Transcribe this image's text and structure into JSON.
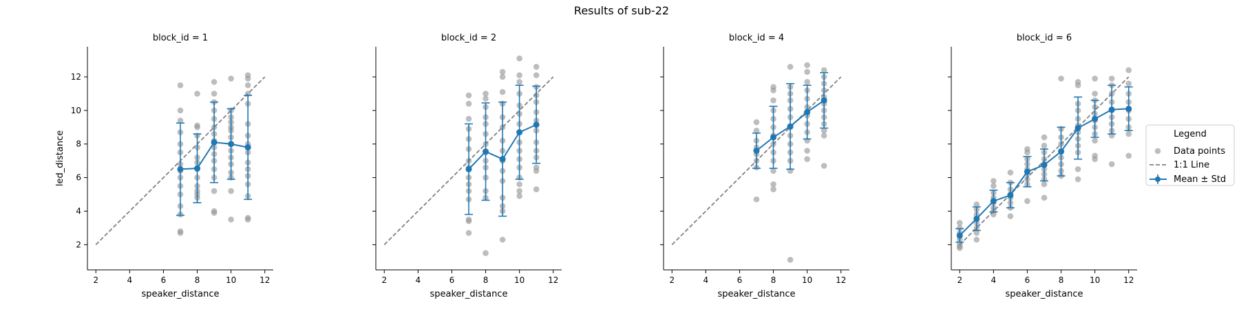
{
  "figure": {
    "title": "Results of sub-22"
  },
  "legend": {
    "title": "Legend",
    "placement": "right",
    "entries": [
      {
        "label": "Data points",
        "kind": "scatter",
        "color": "#a9a9a9"
      },
      {
        "label": "1:1 Line",
        "kind": "dashed-line",
        "color": "#808080"
      },
      {
        "label": "Mean ± Std",
        "kind": "errorbar-line",
        "color": "#1f77b4"
      }
    ]
  },
  "chart_data": [
    {
      "type": "scatter",
      "title": "block_id = 1",
      "xlabel": "speaker_distance",
      "ylabel": "led_distance",
      "xlim": [
        1.5,
        12.5
      ],
      "ylim": [
        0.5,
        13.8
      ],
      "xticks": [
        2,
        4,
        6,
        8,
        10,
        12
      ],
      "yticks": [
        2,
        4,
        6,
        8,
        10,
        12
      ],
      "grid": false,
      "identity_line": [
        [
          2,
          2
        ],
        [
          12,
          12
        ]
      ],
      "points": [
        [
          7,
          11.5
        ],
        [
          7,
          10.0
        ],
        [
          7,
          9.4
        ],
        [
          7,
          8.7
        ],
        [
          7,
          8.0
        ],
        [
          7,
          7.5
        ],
        [
          7,
          6.8
        ],
        [
          7,
          6.4
        ],
        [
          7,
          6.0
        ],
        [
          7,
          5.5
        ],
        [
          7,
          5.0
        ],
        [
          7,
          4.3
        ],
        [
          7,
          3.8
        ],
        [
          7,
          2.8
        ],
        [
          7,
          2.7
        ],
        [
          8,
          11.0
        ],
        [
          8,
          9.1
        ],
        [
          8,
          9.0
        ],
        [
          8,
          8.5
        ],
        [
          8,
          7.8
        ],
        [
          8,
          7.2
        ],
        [
          8,
          6.9
        ],
        [
          8,
          6.5
        ],
        [
          8,
          6.0
        ],
        [
          8,
          5.5
        ],
        [
          8,
          5.2
        ],
        [
          8,
          5.0
        ],
        [
          8,
          4.8
        ],
        [
          9,
          11.7
        ],
        [
          9,
          11.0
        ],
        [
          9,
          10.5
        ],
        [
          9,
          10.0
        ],
        [
          9,
          9.5
        ],
        [
          9,
          9.0
        ],
        [
          9,
          8.6
        ],
        [
          9,
          8.2
        ],
        [
          9,
          7.8
        ],
        [
          9,
          7.4
        ],
        [
          9,
          7.0
        ],
        [
          9,
          6.5
        ],
        [
          9,
          6.0
        ],
        [
          9,
          5.2
        ],
        [
          9,
          4.0
        ],
        [
          9,
          3.9
        ],
        [
          10,
          11.9
        ],
        [
          10,
          10.0
        ],
        [
          10,
          9.6
        ],
        [
          10,
          9.3
        ],
        [
          10,
          9.0
        ],
        [
          10,
          8.8
        ],
        [
          10,
          8.4
        ],
        [
          10,
          8.0
        ],
        [
          10,
          7.6
        ],
        [
          10,
          7.2
        ],
        [
          10,
          6.8
        ],
        [
          10,
          6.3
        ],
        [
          10,
          6.0
        ],
        [
          10,
          5.2
        ],
        [
          10,
          3.5
        ],
        [
          11,
          12.1
        ],
        [
          11,
          11.9
        ],
        [
          11,
          11.5
        ],
        [
          11,
          11.0
        ],
        [
          11,
          10.4
        ],
        [
          11,
          9.2
        ],
        [
          11,
          8.5
        ],
        [
          11,
          8.0
        ],
        [
          11,
          7.5
        ],
        [
          11,
          6.9
        ],
        [
          11,
          6.5
        ],
        [
          11,
          6.1
        ],
        [
          11,
          5.6
        ],
        [
          11,
          4.9
        ],
        [
          11,
          3.6
        ],
        [
          11,
          3.5
        ]
      ],
      "mean_std": {
        "x": [
          7,
          8,
          9,
          10,
          11
        ],
        "mean": [
          6.5,
          6.55,
          8.1,
          8.0,
          7.8
        ],
        "std": [
          2.75,
          2.05,
          2.4,
          2.1,
          3.1
        ]
      }
    },
    {
      "type": "scatter",
      "title": "block_id = 2",
      "xlabel": "speaker_distance",
      "ylabel": "",
      "xlim": [
        1.5,
        12.5
      ],
      "ylim": [
        0.5,
        13.8
      ],
      "xticks": [
        2,
        4,
        6,
        8,
        10,
        12
      ],
      "yticks": [
        2,
        4,
        6,
        8,
        10,
        12
      ],
      "grid": false,
      "identity_line": [
        [
          2,
          2
        ],
        [
          12,
          12
        ]
      ],
      "points": [
        [
          7,
          10.9
        ],
        [
          7,
          10.4
        ],
        [
          7,
          9.5
        ],
        [
          7,
          8.9
        ],
        [
          7,
          8.3
        ],
        [
          7,
          7.7
        ],
        [
          7,
          7.0
        ],
        [
          7,
          6.6
        ],
        [
          7,
          6.0
        ],
        [
          7,
          5.6
        ],
        [
          7,
          5.2
        ],
        [
          7,
          4.7
        ],
        [
          7,
          3.5
        ],
        [
          7,
          3.4
        ],
        [
          7,
          2.7
        ],
        [
          8,
          11.0
        ],
        [
          8,
          10.7
        ],
        [
          8,
          10.2
        ],
        [
          8,
          9.6
        ],
        [
          8,
          9.2
        ],
        [
          8,
          8.6
        ],
        [
          8,
          8.0
        ],
        [
          8,
          7.5
        ],
        [
          8,
          7.0
        ],
        [
          8,
          6.6
        ],
        [
          8,
          6.0
        ],
        [
          8,
          5.2
        ],
        [
          8,
          4.8
        ],
        [
          8,
          1.5
        ],
        [
          9,
          12.3
        ],
        [
          9,
          12.0
        ],
        [
          9,
          11.1
        ],
        [
          9,
          10.4
        ],
        [
          9,
          9.6
        ],
        [
          9,
          9.0
        ],
        [
          9,
          8.2
        ],
        [
          9,
          7.6
        ],
        [
          9,
          7.0
        ],
        [
          9,
          6.4
        ],
        [
          9,
          5.8
        ],
        [
          9,
          4.8
        ],
        [
          9,
          4.3
        ],
        [
          9,
          4.0
        ],
        [
          9,
          2.3
        ],
        [
          10,
          13.1
        ],
        [
          10,
          12.1
        ],
        [
          10,
          11.7
        ],
        [
          10,
          11.0
        ],
        [
          10,
          10.3
        ],
        [
          10,
          9.8
        ],
        [
          10,
          9.2
        ],
        [
          10,
          8.7
        ],
        [
          10,
          8.1
        ],
        [
          10,
          7.6
        ],
        [
          10,
          7.1
        ],
        [
          10,
          6.6
        ],
        [
          10,
          6.0
        ],
        [
          10,
          5.6
        ],
        [
          10,
          5.2
        ],
        [
          10,
          4.9
        ],
        [
          11,
          12.6
        ],
        [
          11,
          12.1
        ],
        [
          11,
          11.4
        ],
        [
          11,
          10.9
        ],
        [
          11,
          10.5
        ],
        [
          11,
          9.9
        ],
        [
          11,
          9.4
        ],
        [
          11,
          8.8
        ],
        [
          11,
          8.1
        ],
        [
          11,
          7.6
        ],
        [
          11,
          7.2
        ],
        [
          11,
          6.6
        ],
        [
          11,
          6.4
        ],
        [
          11,
          5.3
        ]
      ],
      "mean_std": {
        "x": [
          7,
          8,
          9,
          10,
          11
        ],
        "mean": [
          6.5,
          7.55,
          7.1,
          8.7,
          9.15
        ],
        "std": [
          2.7,
          2.9,
          3.4,
          2.8,
          2.3
        ]
      }
    },
    {
      "type": "scatter",
      "title": "block_id = 4",
      "xlabel": "speaker_distance",
      "ylabel": "",
      "xlim": [
        1.5,
        12.5
      ],
      "ylim": [
        0.5,
        13.8
      ],
      "xticks": [
        2,
        4,
        6,
        8,
        10,
        12
      ],
      "yticks": [
        2,
        4,
        6,
        8,
        10,
        12
      ],
      "grid": false,
      "identity_line": [
        [
          2,
          2
        ],
        [
          12,
          12
        ]
      ],
      "points": [
        [
          7,
          9.3
        ],
        [
          7,
          8.8
        ],
        [
          7,
          8.2
        ],
        [
          7,
          7.8
        ],
        [
          7,
          7.4
        ],
        [
          7,
          7.0
        ],
        [
          7,
          6.6
        ],
        [
          7,
          4.7
        ],
        [
          8,
          11.4
        ],
        [
          8,
          11.2
        ],
        [
          8,
          10.6
        ],
        [
          8,
          10.0
        ],
        [
          8,
          9.5
        ],
        [
          8,
          9.0
        ],
        [
          8,
          8.5
        ],
        [
          8,
          8.0
        ],
        [
          8,
          7.5
        ],
        [
          8,
          7.0
        ],
        [
          8,
          6.4
        ],
        [
          8,
          5.6
        ],
        [
          8,
          5.3
        ],
        [
          9,
          12.6
        ],
        [
          9,
          11.4
        ],
        [
          9,
          11.0
        ],
        [
          9,
          10.6
        ],
        [
          9,
          10.1
        ],
        [
          9,
          9.6
        ],
        [
          9,
          9.0
        ],
        [
          9,
          8.5
        ],
        [
          9,
          8.0
        ],
        [
          9,
          7.5
        ],
        [
          9,
          7.0
        ],
        [
          9,
          6.4
        ],
        [
          9,
          1.1
        ],
        [
          10,
          12.7
        ],
        [
          10,
          12.3
        ],
        [
          10,
          11.7
        ],
        [
          10,
          11.2
        ],
        [
          10,
          10.7
        ],
        [
          10,
          10.2
        ],
        [
          10,
          9.7
        ],
        [
          10,
          9.2
        ],
        [
          10,
          8.7
        ],
        [
          10,
          8.2
        ],
        [
          10,
          7.6
        ],
        [
          10,
          7.1
        ],
        [
          11,
          12.4
        ],
        [
          11,
          12.0
        ],
        [
          11,
          11.6
        ],
        [
          11,
          11.2
        ],
        [
          11,
          10.8
        ],
        [
          11,
          10.4
        ],
        [
          11,
          10.0
        ],
        [
          11,
          9.6
        ],
        [
          11,
          9.2
        ],
        [
          11,
          8.8
        ],
        [
          11,
          8.5
        ],
        [
          11,
          6.7
        ]
      ],
      "mean_std": {
        "x": [
          7,
          8,
          9,
          10,
          11
        ],
        "mean": [
          7.6,
          8.4,
          9.05,
          9.9,
          10.6
        ],
        "std": [
          1.05,
          1.85,
          2.55,
          1.6,
          1.65
        ]
      }
    },
    {
      "type": "scatter",
      "title": "block_id = 6",
      "xlabel": "speaker_distance",
      "ylabel": "",
      "xlim": [
        1.5,
        12.5
      ],
      "ylim": [
        0.5,
        13.8
      ],
      "xticks": [
        2,
        4,
        6,
        8,
        10,
        12
      ],
      "yticks": [
        2,
        4,
        6,
        8,
        10,
        12
      ],
      "grid": false,
      "identity_line": [
        [
          2,
          2
        ],
        [
          12,
          12
        ]
      ],
      "points": [
        [
          2,
          3.3
        ],
        [
          2,
          3.0
        ],
        [
          2,
          2.7
        ],
        [
          2,
          2.5
        ],
        [
          2,
          2.3
        ],
        [
          2,
          2.0
        ],
        [
          2,
          1.9
        ],
        [
          2,
          1.8
        ],
        [
          3,
          4.4
        ],
        [
          3,
          4.1
        ],
        [
          3,
          3.8
        ],
        [
          3,
          3.5
        ],
        [
          3,
          3.3
        ],
        [
          3,
          3.0
        ],
        [
          3,
          2.7
        ],
        [
          3,
          2.3
        ],
        [
          4,
          5.8
        ],
        [
          4,
          5.5
        ],
        [
          4,
          5.1
        ],
        [
          4,
          4.8
        ],
        [
          4,
          4.5
        ],
        [
          4,
          4.2
        ],
        [
          4,
          4.0
        ],
        [
          4,
          3.8
        ],
        [
          5,
          6.3
        ],
        [
          5,
          5.7
        ],
        [
          5,
          5.3
        ],
        [
          5,
          5.0
        ],
        [
          5,
          4.8
        ],
        [
          5,
          4.5
        ],
        [
          5,
          4.2
        ],
        [
          5,
          3.7
        ],
        [
          6,
          7.7
        ],
        [
          6,
          7.5
        ],
        [
          6,
          7.1
        ],
        [
          6,
          6.8
        ],
        [
          6,
          6.5
        ],
        [
          6,
          6.2
        ],
        [
          6,
          5.9
        ],
        [
          6,
          5.6
        ],
        [
          6,
          4.6
        ],
        [
          7,
          8.4
        ],
        [
          7,
          7.9
        ],
        [
          7,
          7.5
        ],
        [
          7,
          7.1
        ],
        [
          7,
          6.8
        ],
        [
          7,
          6.5
        ],
        [
          7,
          6.2
        ],
        [
          7,
          5.9
        ],
        [
          7,
          5.6
        ],
        [
          7,
          4.8
        ],
        [
          8,
          11.9
        ],
        [
          8,
          8.9
        ],
        [
          8,
          8.4
        ],
        [
          8,
          8.0
        ],
        [
          8,
          7.6
        ],
        [
          8,
          7.2
        ],
        [
          8,
          6.8
        ],
        [
          8,
          6.4
        ],
        [
          8,
          6.1
        ],
        [
          9,
          11.7
        ],
        [
          9,
          11.5
        ],
        [
          9,
          10.4
        ],
        [
          9,
          10.0
        ],
        [
          9,
          9.5
        ],
        [
          9,
          9.1
        ],
        [
          9,
          8.7
        ],
        [
          9,
          8.3
        ],
        [
          9,
          7.9
        ],
        [
          9,
          7.5
        ],
        [
          9,
          6.5
        ],
        [
          9,
          5.9
        ],
        [
          10,
          11.9
        ],
        [
          10,
          11.0
        ],
        [
          10,
          10.6
        ],
        [
          10,
          10.2
        ],
        [
          10,
          9.8
        ],
        [
          10,
          9.4
        ],
        [
          10,
          9.0
        ],
        [
          10,
          8.6
        ],
        [
          10,
          8.2
        ],
        [
          10,
          7.3
        ],
        [
          10,
          7.1
        ],
        [
          11,
          11.9
        ],
        [
          11,
          11.5
        ],
        [
          11,
          11.0
        ],
        [
          11,
          10.5
        ],
        [
          11,
          10.0
        ],
        [
          11,
          9.6
        ],
        [
          11,
          9.2
        ],
        [
          11,
          8.8
        ],
        [
          11,
          8.5
        ],
        [
          11,
          6.8
        ],
        [
          12,
          12.4
        ],
        [
          12,
          11.6
        ],
        [
          12,
          11.0
        ],
        [
          12,
          10.5
        ],
        [
          12,
          10.0
        ],
        [
          12,
          9.5
        ],
        [
          12,
          9.0
        ],
        [
          12,
          8.6
        ],
        [
          12,
          7.3
        ]
      ],
      "mean_std": {
        "x": [
          2,
          3,
          4,
          5,
          6,
          7,
          8,
          9,
          10,
          11,
          12
        ],
        "mean": [
          2.55,
          3.55,
          4.6,
          4.95,
          6.35,
          6.75,
          7.55,
          8.95,
          9.5,
          10.05,
          10.1
        ],
        "std": [
          0.4,
          0.7,
          0.65,
          0.75,
          0.9,
          0.95,
          1.45,
          1.85,
          1.1,
          1.45,
          1.3
        ]
      }
    }
  ]
}
